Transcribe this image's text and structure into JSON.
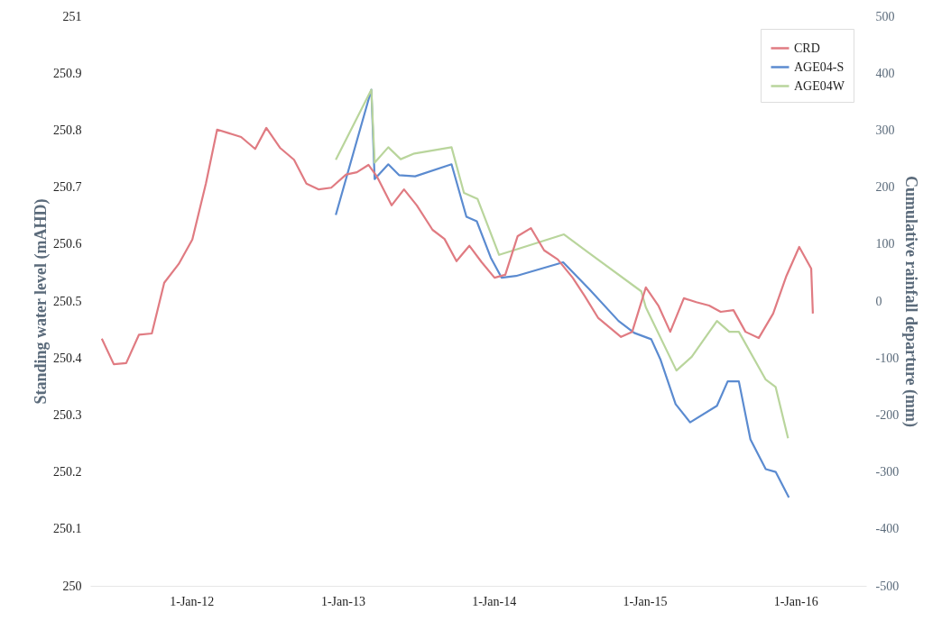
{
  "chart_data": {
    "type": "line",
    "xlabel": null,
    "ylabel": "Standing water level (mAHD)",
    "y2label": "Cumulative rainfall departure (mm)",
    "xlim": [
      "2011-05-01",
      "2016-06-20"
    ],
    "xticks": [
      {
        "value": "2012-01-01",
        "label": "1-Jan-12"
      },
      {
        "value": "2013-01-01",
        "label": "1-Jan-13"
      },
      {
        "value": "2014-01-01",
        "label": "1-Jan-14"
      },
      {
        "value": "2015-01-01",
        "label": "1-Jan-15"
      },
      {
        "value": "2016-01-01",
        "label": "1-Jan-16"
      }
    ],
    "ylim": [
      250,
      251
    ],
    "yticks": [
      250,
      250.1,
      250.2,
      250.3,
      250.4,
      250.5,
      250.6,
      250.7,
      250.8,
      250.9,
      251
    ],
    "y2lim": [
      -500,
      500
    ],
    "y2ticks": [
      -500,
      -400,
      -300,
      -200,
      -100,
      0,
      100,
      200,
      300,
      400,
      500
    ],
    "grid": false,
    "legend": "top right",
    "marker": "none",
    "line_style": "solid",
    "series": [
      {
        "name": "CRD",
        "color": "#e07b82",
        "axis": "y2",
        "x": [
          "2011-05-29",
          "2011-06-27",
          "2011-07-27",
          "2011-08-27",
          "2011-09-27",
          "2011-10-27",
          "2011-12-01",
          "2012-01-03",
          "2012-02-05",
          "2012-03-03",
          "2012-04-30",
          "2012-06-03",
          "2012-06-30",
          "2012-08-02",
          "2012-09-05",
          "2012-10-05",
          "2012-11-04",
          "2012-12-04",
          "2013-01-09",
          "2013-02-04",
          "2013-03-04",
          "2013-03-25",
          "2013-04-29",
          "2013-05-29",
          "2013-06-29",
          "2013-08-06",
          "2013-09-04",
          "2013-10-03",
          "2013-11-03",
          "2013-12-03",
          "2014-01-03",
          "2014-01-29",
          "2014-02-28",
          "2014-04-01",
          "2014-05-03",
          "2014-06-05",
          "2014-07-11",
          "2014-08-09",
          "2014-09-11",
          "2014-11-05",
          "2014-12-02",
          "2015-01-04",
          "2015-02-04",
          "2015-03-04",
          "2015-04-06",
          "2015-05-06",
          "2015-06-06",
          "2015-07-04",
          "2015-08-04",
          "2015-09-02",
          "2015-10-04",
          "2015-11-08",
          "2015-12-10",
          "2016-01-10",
          "2016-02-08",
          "2016-02-12"
        ],
        "values": [
          -66,
          -111,
          -109,
          -59,
          -57,
          32,
          65,
          108,
          207,
          301,
          288,
          267,
          304,
          269,
          248,
          206,
          196,
          199,
          222,
          226,
          239,
          218,
          168,
          196,
          168,
          125,
          109,
          70,
          97,
          68,
          41,
          46,
          114,
          128,
          89,
          73,
          41,
          9,
          -30,
          -63,
          -54,
          24,
          -9,
          -54,
          5,
          -2,
          -8,
          -19,
          -16,
          -54,
          -65,
          -22,
          44,
          95,
          57,
          -22
        ]
      },
      {
        "name": "AGE04-S",
        "color": "#5b8bd0",
        "axis": "y",
        "x": [
          "2012-12-15",
          "2013-03-11",
          "2013-03-19",
          "2013-04-21",
          "2013-05-17",
          "2013-06-25",
          "2013-09-21",
          "2013-10-27",
          "2013-11-21",
          "2013-12-25",
          "2014-01-20",
          "2014-02-24",
          "2014-06-18",
          "2014-08-20",
          "2014-10-30",
          "2014-12-07",
          "2015-01-17",
          "2015-02-08",
          "2015-03-17",
          "2015-04-21",
          "2015-06-25",
          "2015-07-21",
          "2015-08-17",
          "2015-09-14",
          "2015-10-21",
          "2015-11-14",
          "2015-12-16"
        ],
        "values": [
          250.651,
          250.871,
          250.714,
          250.74,
          250.721,
          250.719,
          250.74,
          250.648,
          250.64,
          250.576,
          250.541,
          250.544,
          250.568,
          250.521,
          250.465,
          250.444,
          250.433,
          250.398,
          250.319,
          250.287,
          250.316,
          250.359,
          250.359,
          250.257,
          250.205,
          250.2,
          250.155
        ]
      },
      {
        "name": "AGE04W",
        "color": "#b9d59c",
        "axis": "y",
        "x": [
          "2012-12-15",
          "2013-03-11",
          "2013-03-19",
          "2013-04-21",
          "2013-05-21",
          "2013-06-23",
          "2013-09-21",
          "2013-10-21",
          "2013-11-23",
          "2014-01-14",
          "2014-02-18",
          "2014-06-20",
          "2014-08-20",
          "2014-12-24",
          "2015-01-04",
          "2015-03-19",
          "2015-04-25",
          "2015-06-25",
          "2015-07-25",
          "2015-08-17",
          "2015-10-21",
          "2015-11-14",
          "2015-12-14"
        ],
        "values": [
          250.748,
          250.871,
          250.743,
          250.77,
          250.749,
          250.759,
          250.77,
          250.69,
          250.679,
          250.581,
          250.589,
          250.617,
          250.584,
          250.517,
          250.489,
          250.378,
          250.402,
          250.465,
          250.446,
          250.446,
          250.362,
          250.349,
          250.259
        ]
      }
    ]
  }
}
